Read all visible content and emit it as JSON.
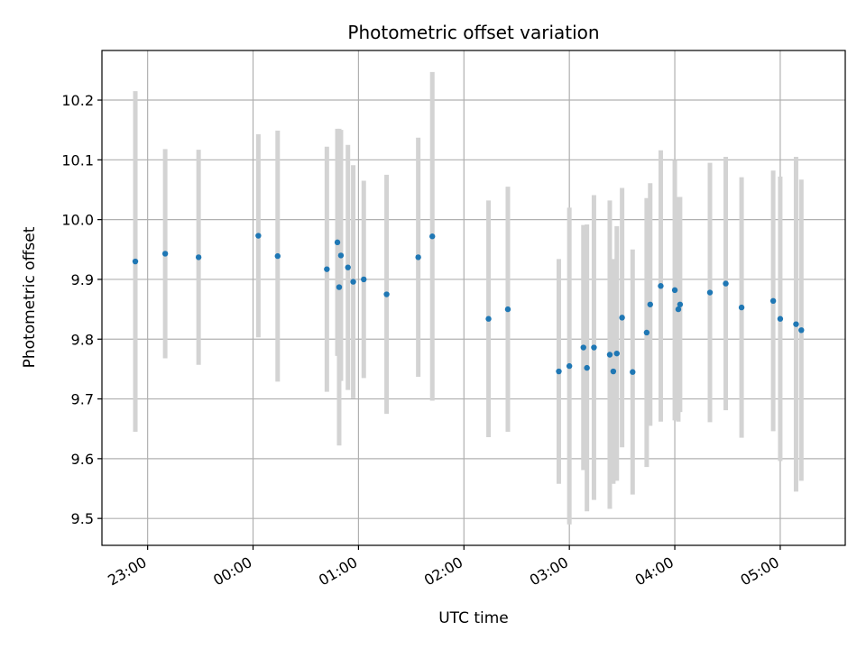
{
  "chart_data": {
    "type": "scatter",
    "title": "Photometric offset variation",
    "xlabel": "UTC time",
    "ylabel": "Photometric offset",
    "x_unit": "UTC time (hh:mm)",
    "xlim": [
      "22:34",
      "05:37"
    ],
    "ylim": [
      9.455,
      10.283
    ],
    "grid": true,
    "legend": "none",
    "x_ticks": [
      "23:00",
      "00:00",
      "01:00",
      "02:00",
      "03:00",
      "04:00",
      "05:00"
    ],
    "y_ticks": [
      "9.5",
      "9.6",
      "9.7",
      "9.8",
      "9.9",
      "10.0",
      "10.1",
      "10.2"
    ],
    "colors": {
      "points": "#1f77b4",
      "errorbars": "#d3d3d3",
      "grid": "#b0b0b0"
    },
    "series": [
      {
        "x": [
          "22:53",
          "23:10",
          "23:29",
          "00:03",
          "00:14",
          "00:42",
          "00:48",
          "00:49",
          "00:50",
          "00:54",
          "00:57",
          "01:03",
          "01:16",
          "01:34",
          "01:42",
          "02:14",
          "02:25",
          "02:54",
          "03:00",
          "03:08",
          "03:10",
          "03:14",
          "03:23",
          "03:25",
          "03:27",
          "03:30",
          "03:36",
          "03:44",
          "03:46",
          "03:52",
          "04:00",
          "04:02",
          "04:03",
          "04:20",
          "04:29",
          "04:38",
          "04:56",
          "05:00",
          "05:09",
          "05:12"
        ],
        "y": [
          9.93,
          9.943,
          9.937,
          9.973,
          9.939,
          9.917,
          9.962,
          9.887,
          9.94,
          9.92,
          9.896,
          9.9,
          9.875,
          9.937,
          9.972,
          9.834,
          9.85,
          9.746,
          9.755,
          9.786,
          9.752,
          9.786,
          9.774,
          9.746,
          9.776,
          9.836,
          9.745,
          9.811,
          9.858,
          9.889,
          9.882,
          9.85,
          9.858,
          9.878,
          9.893,
          9.853,
          9.864,
          9.834,
          9.825,
          9.815
        ],
        "yerr": [
          0.285,
          0.175,
          0.18,
          0.17,
          0.21,
          0.205,
          0.19,
          0.265,
          0.21,
          0.205,
          0.195,
          0.165,
          0.2,
          0.2,
          0.275,
          0.198,
          0.205,
          0.188,
          0.265,
          0.205,
          0.24,
          0.255,
          0.258,
          0.188,
          0.213,
          0.217,
          0.205,
          0.225,
          0.203,
          0.227,
          0.218,
          0.188,
          0.18,
          0.217,
          0.212,
          0.218,
          0.218,
          0.238,
          0.28,
          0.252
        ]
      }
    ]
  }
}
